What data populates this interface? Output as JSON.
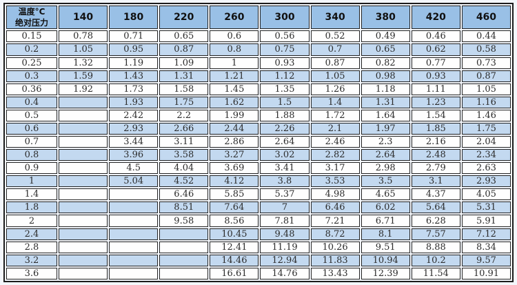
{
  "colors": {
    "header_bg": "#99c0e6",
    "row_alt_bg": "#c3d9f0",
    "row_bg": "#fefefe",
    "cell_border": "#222222",
    "outer_border": "#1b1b1b",
    "page_bg": "#f3f6fb",
    "header_text": "#111111",
    "cell_text": "#2b2b2b"
  },
  "table": {
    "corner_header": {
      "line1": "温度°C",
      "line2": "绝对压力"
    },
    "columns": [
      "140",
      "180",
      "220",
      "260",
      "300",
      "340",
      "380",
      "420",
      "460"
    ],
    "rows": [
      {
        "label": "0.15",
        "values": [
          "0.78",
          "0.71",
          "0.65",
          "0.6",
          "0.56",
          "0.52",
          "0.49",
          "0.46",
          "0.44"
        ]
      },
      {
        "label": "0.2",
        "values": [
          "1.05",
          "0.95",
          "0.87",
          "0.8",
          "0.75",
          "0.7",
          "0.65",
          "0.62",
          "0.58"
        ]
      },
      {
        "label": "0.25",
        "values": [
          "1.32",
          "1.19",
          "1.09",
          "1",
          "0.93",
          "0.87",
          "0.82",
          "0.77",
          "0.73"
        ]
      },
      {
        "label": "0.3",
        "values": [
          "1.59",
          "1.43",
          "1.31",
          "1.21",
          "1.12",
          "1.05",
          "0.98",
          "0.93",
          "0.87"
        ]
      },
      {
        "label": "0.36",
        "values": [
          "1.92",
          "1.73",
          "1.58",
          "1.45",
          "1.35",
          "1.26",
          "1.18",
          "1.11",
          "1.05"
        ]
      },
      {
        "label": "0.4",
        "values": [
          "",
          "1.93",
          "1.75",
          "1.62",
          "1.5",
          "1.4",
          "1.31",
          "1.23",
          "1.16"
        ]
      },
      {
        "label": "0.5",
        "values": [
          "",
          "2.42",
          "2.2",
          "1.99",
          "1.88",
          "1.72",
          "1.64",
          "1.54",
          "1.46"
        ]
      },
      {
        "label": "0.6",
        "values": [
          "",
          "2.93",
          "2.66",
          "2.44",
          "2.26",
          "2.1",
          "1.97",
          "1.85",
          "1.75"
        ]
      },
      {
        "label": "0.7",
        "values": [
          "",
          "3.44",
          "3.11",
          "2.86",
          "2.64",
          "2.46",
          "2.3",
          "2.16",
          "2.04"
        ]
      },
      {
        "label": "0.8",
        "values": [
          "",
          "3.96",
          "3.58",
          "3.27",
          "3.02",
          "2.82",
          "2.64",
          "2.48",
          "2.34"
        ]
      },
      {
        "label": "0.9",
        "values": [
          "",
          "4.5",
          "4.04",
          "3.69",
          "3.41",
          "3.17",
          "2.98",
          "2.79",
          "2.63"
        ]
      },
      {
        "label": "1",
        "values": [
          "",
          "5.04",
          "4.52",
          "4.12",
          "3.8",
          "3.53",
          "3.5",
          "3.1",
          "2.93"
        ]
      },
      {
        "label": "1.4",
        "values": [
          "",
          "",
          "6.46",
          "5.85",
          "5.37",
          "4.98",
          "4.65",
          "4.37",
          "4.05"
        ]
      },
      {
        "label": "1.8",
        "values": [
          "",
          "",
          "8.51",
          "7.64",
          "7",
          "6.46",
          "6.02",
          "5.64",
          "5.31"
        ]
      },
      {
        "label": "2",
        "values": [
          "",
          "",
          "9.58",
          "8.56",
          "7.81",
          "7.21",
          "6.71",
          "6.28",
          "5.91"
        ]
      },
      {
        "label": "2.4",
        "values": [
          "",
          "",
          "",
          "10.45",
          "9.48",
          "8.72",
          "8.1",
          "7.57",
          "7.12"
        ]
      },
      {
        "label": "2.8",
        "values": [
          "",
          "",
          "",
          "12.41",
          "11.19",
          "10.26",
          "9.51",
          "8.88",
          "8.34"
        ]
      },
      {
        "label": "3.2",
        "values": [
          "",
          "",
          "",
          "14.46",
          "12.94",
          "11.83",
          "10.94",
          "10.2",
          "9.57"
        ]
      },
      {
        "label": "3.6",
        "values": [
          "",
          "",
          "",
          "16.61",
          "14.76",
          "13.43",
          "12.39",
          "11.54",
          "10.91"
        ]
      }
    ]
  }
}
